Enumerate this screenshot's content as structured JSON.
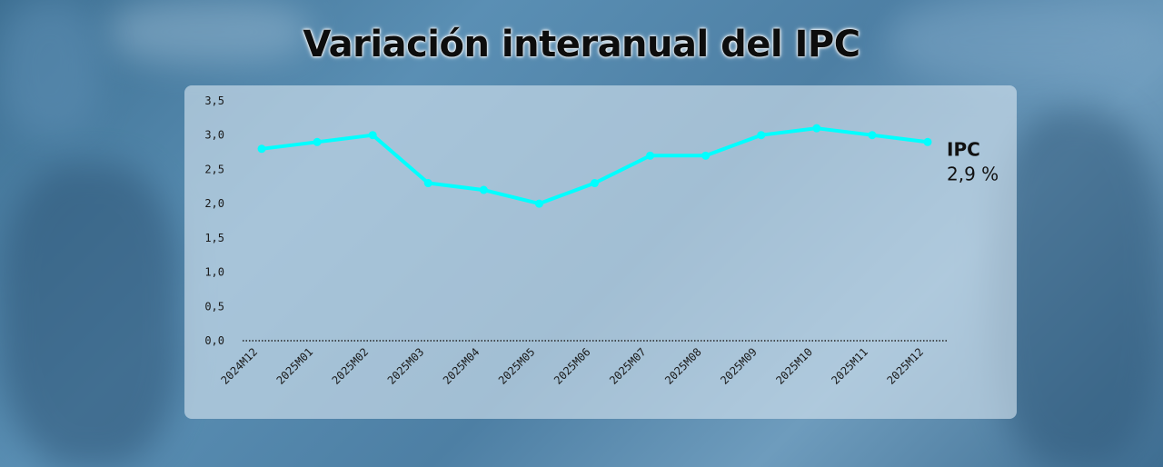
{
  "chart_data": {
    "type": "line",
    "title": "Variación interanual del IPC",
    "xlabel": "",
    "ylabel": "",
    "ylim": [
      0,
      3.5
    ],
    "y_ticks": [
      "0,0",
      "0,5",
      "1,0",
      "1,5",
      "2,0",
      "2,5",
      "3,0",
      "3,5"
    ],
    "categories": [
      "2024M12",
      "2025M01",
      "2025M02",
      "2025M03",
      "2025M04",
      "2025M05",
      "2025M06",
      "2025M07",
      "2025M08",
      "2025M09",
      "2025M10",
      "2025M11",
      "2025M12"
    ],
    "series": [
      {
        "name": "IPC",
        "values": [
          2.8,
          2.9,
          3.0,
          2.3,
          2.2,
          2.0,
          2.3,
          2.7,
          2.7,
          3.0,
          3.1,
          3.0,
          2.9
        ],
        "color": "#00ffff"
      }
    ],
    "end_label": {
      "name": "IPC",
      "value": "2,9 %"
    },
    "grid": false,
    "baseline": "dotted"
  }
}
